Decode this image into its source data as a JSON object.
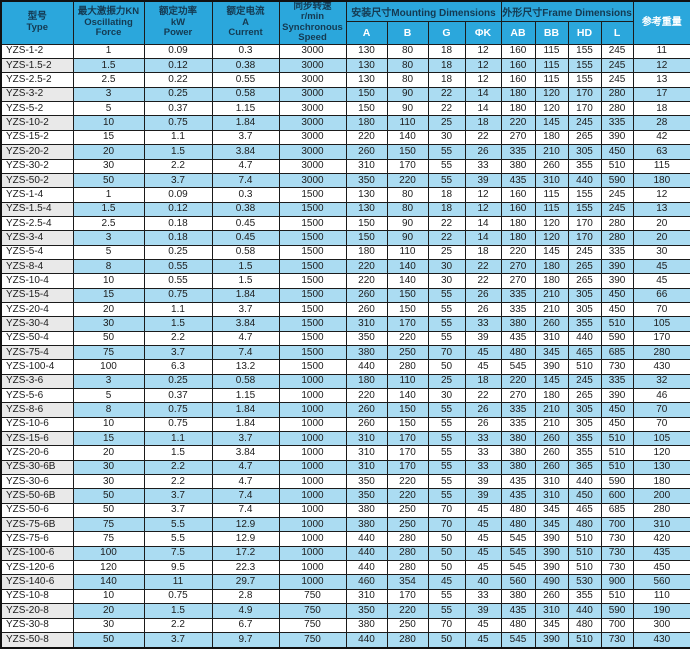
{
  "header": {
    "type": "型号\nType",
    "force": "最大激振力KN\nOscillating\nForce",
    "power": "额定功率\nkW\nPower",
    "current": "额定电流\nA\nCurrent",
    "speed": "同步转速\nr/min\nSynchronous Speed",
    "mounting_group": "安装尺寸Mounting Dimensions",
    "frame_group": "外形尺寸Frame Dimensions",
    "weight": "参考重量",
    "mounting_cols": [
      "A",
      "B",
      "G",
      "ΦK"
    ],
    "frame_cols": [
      "AB",
      "BB",
      "HD",
      "L"
    ]
  },
  "colors": {
    "header_bg": "#2ba7dc",
    "row_alt_blue": "#abdcf2",
    "type_alt_gray": "#e9e9e9",
    "header_text_dark": "#143a52",
    "header_text_light": "#ffffff",
    "grid": "#1b1b1b"
  },
  "rows": [
    [
      "YZS-1-2",
      "1",
      "0.09",
      "0.3",
      "3000",
      "130",
      "80",
      "18",
      "12",
      "160",
      "115",
      "155",
      "245",
      "11"
    ],
    [
      "YZS-1.5-2",
      "1.5",
      "0.12",
      "0.38",
      "3000",
      "130",
      "80",
      "18",
      "12",
      "160",
      "115",
      "155",
      "245",
      "12"
    ],
    [
      "YZS-2.5-2",
      "2.5",
      "0.22",
      "0.55",
      "3000",
      "130",
      "80",
      "18",
      "12",
      "160",
      "115",
      "155",
      "245",
      "13"
    ],
    [
      "YZS-3-2",
      "3",
      "0.25",
      "0.58",
      "3000",
      "150",
      "90",
      "22",
      "14",
      "180",
      "120",
      "170",
      "280",
      "17"
    ],
    [
      "YZS-5-2",
      "5",
      "0.37",
      "1.15",
      "3000",
      "150",
      "90",
      "22",
      "14",
      "180",
      "120",
      "170",
      "280",
      "18"
    ],
    [
      "YZS-10-2",
      "10",
      "0.75",
      "1.84",
      "3000",
      "180",
      "110",
      "25",
      "18",
      "220",
      "145",
      "245",
      "335",
      "28"
    ],
    [
      "YZS-15-2",
      "15",
      "1.1",
      "3.7",
      "3000",
      "220",
      "140",
      "30",
      "22",
      "270",
      "180",
      "265",
      "390",
      "42"
    ],
    [
      "YZS-20-2",
      "20",
      "1.5",
      "3.84",
      "3000",
      "260",
      "150",
      "55",
      "26",
      "335",
      "210",
      "305",
      "450",
      "63"
    ],
    [
      "YZS-30-2",
      "30",
      "2.2",
      "4.7",
      "3000",
      "310",
      "170",
      "55",
      "33",
      "380",
      "260",
      "355",
      "510",
      "115"
    ],
    [
      "YZS-50-2",
      "50",
      "3.7",
      "7.4",
      "3000",
      "350",
      "220",
      "55",
      "39",
      "435",
      "310",
      "440",
      "590",
      "180"
    ],
    [
      "YZS-1-4",
      "1",
      "0.09",
      "0.3",
      "1500",
      "130",
      "80",
      "18",
      "12",
      "160",
      "115",
      "155",
      "245",
      "12"
    ],
    [
      "YZS-1.5-4",
      "1.5",
      "0.12",
      "0.38",
      "1500",
      "130",
      "80",
      "18",
      "12",
      "160",
      "115",
      "155",
      "245",
      "13"
    ],
    [
      "YZS-2.5-4",
      "2.5",
      "0.18",
      "0.45",
      "1500",
      "150",
      "90",
      "22",
      "14",
      "180",
      "120",
      "170",
      "280",
      "20"
    ],
    [
      "YZS-3-4",
      "3",
      "0.18",
      "0.45",
      "1500",
      "150",
      "90",
      "22",
      "14",
      "180",
      "120",
      "170",
      "280",
      "20"
    ],
    [
      "YZS-5-4",
      "5",
      "0.25",
      "0.58",
      "1500",
      "180",
      "110",
      "25",
      "18",
      "220",
      "145",
      "245",
      "335",
      "30"
    ],
    [
      "YZS-8-4",
      "8",
      "0.55",
      "1.5",
      "1500",
      "220",
      "140",
      "30",
      "22",
      "270",
      "180",
      "265",
      "390",
      "45"
    ],
    [
      "YZS-10-4",
      "10",
      "0.55",
      "1.5",
      "1500",
      "220",
      "140",
      "30",
      "22",
      "270",
      "180",
      "265",
      "390",
      "45"
    ],
    [
      "YZS-15-4",
      "15",
      "0.75",
      "1.84",
      "1500",
      "260",
      "150",
      "55",
      "26",
      "335",
      "210",
      "305",
      "450",
      "66"
    ],
    [
      "YZS-20-4",
      "20",
      "1.1",
      "3.7",
      "1500",
      "260",
      "150",
      "55",
      "26",
      "335",
      "210",
      "305",
      "450",
      "70"
    ],
    [
      "YZS-30-4",
      "30",
      "1.5",
      "3.84",
      "1500",
      "310",
      "170",
      "55",
      "33",
      "380",
      "260",
      "355",
      "510",
      "105"
    ],
    [
      "YZS-50-4",
      "50",
      "2.2",
      "4.7",
      "1500",
      "350",
      "220",
      "55",
      "39",
      "435",
      "310",
      "440",
      "590",
      "170"
    ],
    [
      "YZS-75-4",
      "75",
      "3.7",
      "7.4",
      "1500",
      "380",
      "250",
      "70",
      "45",
      "480",
      "345",
      "465",
      "685",
      "280"
    ],
    [
      "YZS-100-4",
      "100",
      "6.3",
      "13.2",
      "1500",
      "440",
      "280",
      "50",
      "45",
      "545",
      "390",
      "510",
      "730",
      "430"
    ],
    [
      "YZS-3-6",
      "3",
      "0.25",
      "0.58",
      "1000",
      "180",
      "110",
      "25",
      "18",
      "220",
      "145",
      "245",
      "335",
      "32"
    ],
    [
      "YZS-5-6",
      "5",
      "0.37",
      "1.15",
      "1000",
      "220",
      "140",
      "30",
      "22",
      "270",
      "180",
      "265",
      "390",
      "46"
    ],
    [
      "YZS-8-6",
      "8",
      "0.75",
      "1.84",
      "1000",
      "260",
      "150",
      "55",
      "26",
      "335",
      "210",
      "305",
      "450",
      "70"
    ],
    [
      "YZS-10-6",
      "10",
      "0.75",
      "1.84",
      "1000",
      "260",
      "150",
      "55",
      "26",
      "335",
      "210",
      "305",
      "450",
      "70"
    ],
    [
      "YZS-15-6",
      "15",
      "1.1",
      "3.7",
      "1000",
      "310",
      "170",
      "55",
      "33",
      "380",
      "260",
      "355",
      "510",
      "105"
    ],
    [
      "YZS-20-6",
      "20",
      "1.5",
      "3.84",
      "1000",
      "310",
      "170",
      "55",
      "33",
      "380",
      "260",
      "355",
      "510",
      "120"
    ],
    [
      "YZS-30-6B",
      "30",
      "2.2",
      "4.7",
      "1000",
      "310",
      "170",
      "55",
      "33",
      "380",
      "260",
      "365",
      "510",
      "130"
    ],
    [
      "YZS-30-6",
      "30",
      "2.2",
      "4.7",
      "1000",
      "350",
      "220",
      "55",
      "39",
      "435",
      "310",
      "440",
      "590",
      "180"
    ],
    [
      "YZS-50-6B",
      "50",
      "3.7",
      "7.4",
      "1000",
      "350",
      "220",
      "55",
      "39",
      "435",
      "310",
      "450",
      "600",
      "200"
    ],
    [
      "YZS-50-6",
      "50",
      "3.7",
      "7.4",
      "1000",
      "380",
      "250",
      "70",
      "45",
      "480",
      "345",
      "465",
      "685",
      "280"
    ],
    [
      "YZS-75-6B",
      "75",
      "5.5",
      "12.9",
      "1000",
      "380",
      "250",
      "70",
      "45",
      "480",
      "345",
      "480",
      "700",
      "310"
    ],
    [
      "YZS-75-6",
      "75",
      "5.5",
      "12.9",
      "1000",
      "440",
      "280",
      "50",
      "45",
      "545",
      "390",
      "510",
      "730",
      "420"
    ],
    [
      "YZS-100-6",
      "100",
      "7.5",
      "17.2",
      "1000",
      "440",
      "280",
      "50",
      "45",
      "545",
      "390",
      "510",
      "730",
      "435"
    ],
    [
      "YZS-120-6",
      "120",
      "9.5",
      "22.3",
      "1000",
      "440",
      "280",
      "50",
      "45",
      "545",
      "390",
      "510",
      "730",
      "450"
    ],
    [
      "YZS-140-6",
      "140",
      "11",
      "29.7",
      "1000",
      "460",
      "354",
      "45",
      "40",
      "560",
      "490",
      "530",
      "900",
      "560"
    ],
    [
      "YZS-10-8",
      "10",
      "0.75",
      "2.8",
      "750",
      "310",
      "170",
      "55",
      "33",
      "380",
      "260",
      "355",
      "510",
      "110"
    ],
    [
      "YZS-20-8",
      "20",
      "1.5",
      "4.9",
      "750",
      "350",
      "220",
      "55",
      "39",
      "435",
      "310",
      "440",
      "590",
      "190"
    ],
    [
      "YZS-30-8",
      "30",
      "2.2",
      "6.7",
      "750",
      "380",
      "250",
      "70",
      "45",
      "480",
      "345",
      "480",
      "700",
      "300"
    ],
    [
      "YZS-50-8",
      "50",
      "3.7",
      "9.7",
      "750",
      "440",
      "280",
      "50",
      "45",
      "545",
      "390",
      "510",
      "730",
      "430"
    ]
  ]
}
